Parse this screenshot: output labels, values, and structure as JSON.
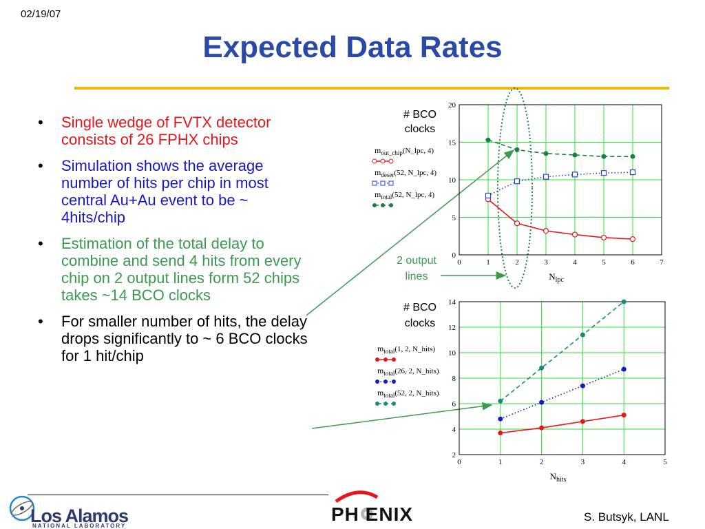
{
  "header": {
    "date": "02/19/07",
    "title": "Expected Data Rates"
  },
  "bullets": [
    {
      "text": "Single wedge of FVTX detector consists of 26 FPHX chips",
      "color": "#e8161b"
    },
    {
      "text": "Simulation shows the average number of hits per chip in most central Au+Au event to be ~ 4hits/chip",
      "color": "#1616c8"
    },
    {
      "text": "Estimation of the total delay to combine and send 4 hits from every chip on 2 output lines form 52 chips takes ~14 BCO clocks",
      "color": "#3a9a4e"
    },
    {
      "text": "For smaller number of hits, the delay drops significantly to ~ 6 BCO clocks for 1 hit/chip",
      "color": "#000000"
    }
  ],
  "annotations": {
    "bco_top": [
      "# BCO",
      "clocks"
    ],
    "bco_bottom": [
      "# BCO",
      "clocks"
    ],
    "output_lines": [
      "2 output",
      "lines"
    ]
  },
  "chart_data": [
    {
      "type": "line",
      "x_var": "N",
      "x_sub": "lpc",
      "xlim": [
        0,
        7
      ],
      "ylim": [
        0,
        20
      ],
      "xticks": [
        0,
        1,
        2,
        3,
        4,
        5,
        6,
        7
      ],
      "yticks": [
        0,
        5,
        10,
        15,
        20
      ],
      "grid": true,
      "series": [
        {
          "name": "m_out_chip(N_lpc, 4)",
          "label_main": "m",
          "label_sub": "out_chip",
          "label_args": "(N_lpc, 4)",
          "color": "#e8161b",
          "marker": "open-circle",
          "style": "solid",
          "x": [
            1,
            2,
            3,
            4,
            5,
            6
          ],
          "y": [
            7.4,
            4.2,
            3.2,
            2.7,
            2.3,
            2.1
          ]
        },
        {
          "name": "m_deser(52, N_lpc, 4)",
          "label_main": "m",
          "label_sub": "deser",
          "label_args": "(52, N_lpc, 4)",
          "color": "#2244cc",
          "marker": "open-square",
          "style": "dotted",
          "x": [
            1,
            2,
            3,
            4,
            5,
            6
          ],
          "y": [
            7.9,
            9.8,
            10.4,
            10.7,
            10.9,
            11.0
          ]
        },
        {
          "name": "m_total(52, N_lpc, 4)",
          "label_main": "m",
          "label_sub": "total",
          "label_args": "(52, N_lpc, 4)",
          "color": "#1a8040",
          "marker": "filled-circle",
          "style": "dashed",
          "x": [
            1,
            2,
            3,
            4,
            5,
            6
          ],
          "y": [
            15.3,
            14.0,
            13.5,
            13.3,
            13.1,
            13.1
          ]
        }
      ]
    },
    {
      "type": "line",
      "x_var": "N",
      "x_sub": "hits",
      "xlim": [
        0,
        5
      ],
      "ylim": [
        2,
        14
      ],
      "xticks": [
        0,
        1,
        2,
        3,
        4,
        5
      ],
      "yticks": [
        2,
        4,
        6,
        8,
        10,
        12,
        14
      ],
      "grid": true,
      "series": [
        {
          "name": "m_total(1, 2, N_hits)",
          "label_main": "m",
          "label_sub": "total",
          "label_args": "(1, 2, N_hits)",
          "color": "#e8161b",
          "marker": "filled-circle",
          "style": "solid",
          "x": [
            1,
            2,
            3,
            4
          ],
          "y": [
            3.7,
            4.1,
            4.6,
            5.1
          ]
        },
        {
          "name": "m_total(26, 2, N_hits)",
          "label_main": "m",
          "label_sub": "total",
          "label_args": "(26, 2, N_hits)",
          "color": "#1616c8",
          "marker": "filled-circle",
          "style": "dotted",
          "x": [
            1,
            2,
            3,
            4
          ],
          "y": [
            4.8,
            6.1,
            7.4,
            8.7
          ]
        },
        {
          "name": "m_total(52, 2, N_hits)",
          "label_main": "m",
          "label_sub": "total",
          "label_args": "(52, 2, N_hits)",
          "color": "#1a8a78",
          "marker": "filled-circle",
          "style": "dashed",
          "x": [
            1,
            2,
            3,
            4
          ],
          "y": [
            6.2,
            8.8,
            11.4,
            14.0
          ]
        }
      ]
    }
  ],
  "footer": {
    "lab_name": "Los Alamos",
    "lab_sub": "NATIONAL LABORATORY",
    "experiment": "PH   ENIX",
    "author": "S. Butsyk, LANL"
  }
}
